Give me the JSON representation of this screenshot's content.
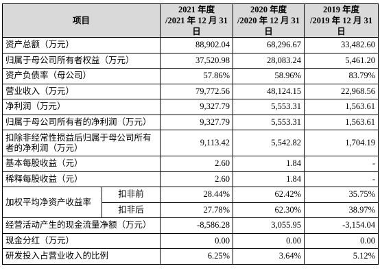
{
  "table": {
    "header": [
      "项目",
      [
        "2021 年度",
        "/2021 年 12 月 31 日"
      ],
      [
        "2020 年度",
        "/2020 年 12 月 31 日"
      ],
      [
        "2019 年度",
        "/2019 年 12 月 31 日"
      ]
    ],
    "rows": [
      [
        "资产总额（万元）",
        "88,902.04",
        "68,296.67",
        "33,482.60"
      ],
      [
        "归属于母公司所有者权益（万元）",
        "37,520.98",
        "28,083.24",
        "5,461.20"
      ],
      [
        "资产负债率（母公司）",
        "57.86%",
        "58.96%",
        "83.79%"
      ],
      [
        "营业收入（万元）",
        "79,772.56",
        "48,124.15",
        "22,968.56"
      ],
      [
        "净利润（万元）",
        "9,327.79",
        "5,553.31",
        "1,563.61"
      ],
      [
        "归属于母公司所有者的净利润（万元）",
        "9,327.79",
        "5,553.31",
        "1,563.61"
      ],
      [
        "扣除非经常性损益后归属于母公司所有者的净利润（万元）",
        "9,113.42",
        "5,542.82",
        "1,704.19"
      ],
      [
        "基本每股收益（元）",
        "2.60",
        "1.84",
        "-"
      ],
      [
        "稀释每股收益（元）",
        "2.60",
        "1.84",
        "-"
      ]
    ],
    "weighted_roe": {
      "label": "加权平均净资产收益率",
      "rows": [
        [
          "扣非前",
          "28.44%",
          "62.42%",
          "35.75%"
        ],
        [
          "扣非后",
          "27.78%",
          "62.30%",
          "38.97%"
        ]
      ]
    },
    "rows_after": [
      [
        "经营活动产生的现金流量净额（万元）",
        "-8,586.28",
        "3,055.95",
        "-3,154.04"
      ],
      [
        "现金分红（万元）",
        "0.00",
        "0.00",
        "0.00"
      ],
      [
        "研发投入占营业收入的比例",
        "6.25%",
        "3.64%",
        "5.12%"
      ]
    ]
  }
}
